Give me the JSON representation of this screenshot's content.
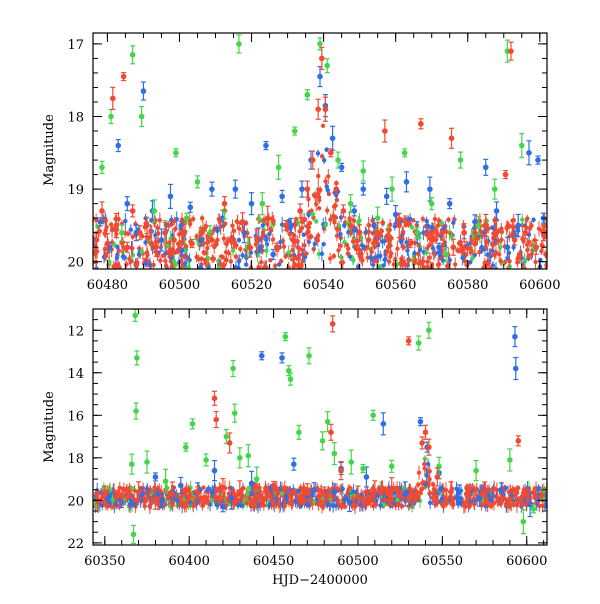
{
  "chart_data": [
    {
      "type": "scatter",
      "title": "",
      "xlabel": "",
      "ylabel": "Magnitude",
      "xlim": [
        60476,
        60602
      ],
      "ylim": [
        20.1,
        16.85
      ],
      "y_inverted": true,
      "x_ticks": [
        60480,
        60500,
        60520,
        60540,
        60560,
        60580,
        60600
      ],
      "x_tick_labels": [
        "60480",
        "60500",
        "60520",
        "60540",
        "60560",
        "60580",
        "60600"
      ],
      "y_ticks": [
        17,
        18,
        19,
        20
      ],
      "y_tick_labels": [
        "17",
        "18",
        "19",
        "20"
      ],
      "x_minor_step": 5,
      "y_minor_step": 0.2,
      "grid": false,
      "legend": "none",
      "series": [
        {
          "color": "#2e6fe6",
          "points": [
            [
              60478.0,
              19.45
            ],
            [
              60480.5,
              19.8
            ],
            [
              60483.0,
              18.4
            ],
            [
              60485.5,
              19.2
            ],
            [
              60488.0,
              19.6
            ],
            [
              60490.0,
              17.65
            ],
            [
              60492.5,
              19.3
            ],
            [
              60495.0,
              19.7
            ],
            [
              60497.5,
              19.1
            ],
            [
              60500.5,
              19.5
            ],
            [
              60503.0,
              19.25
            ],
            [
              60506.0,
              19.7
            ],
            [
              60509.0,
              19.0
            ],
            [
              60512.0,
              19.4
            ],
            [
              60515.5,
              19.0
            ],
            [
              60518.0,
              19.6
            ],
            [
              60520.0,
              19.2
            ],
            [
              60522.0,
              19.7
            ],
            [
              60524.0,
              18.4
            ],
            [
              60526.0,
              19.9
            ],
            [
              60528.5,
              19.1
            ],
            [
              60531.0,
              19.5
            ],
            [
              60534.0,
              19.0
            ],
            [
              60536.5,
              18.6
            ],
            [
              60539.0,
              17.45
            ],
            [
              60540.5,
              17.85
            ],
            [
              60542.5,
              18.3
            ],
            [
              60545.0,
              18.7
            ],
            [
              60548.5,
              19.3
            ],
            [
              60551.0,
              19.0
            ],
            [
              60554.0,
              19.5
            ],
            [
              60557.5,
              19.1
            ],
            [
              60560.0,
              19.35
            ],
            [
              60563.0,
              18.9
            ],
            [
              60566.0,
              19.6
            ],
            [
              60569.5,
              19.0
            ],
            [
              60572.0,
              19.8
            ],
            [
              60575.0,
              19.2
            ],
            [
              60579.0,
              19.6
            ],
            [
              60582.0,
              19.45
            ],
            [
              60585.0,
              18.7
            ],
            [
              60588.0,
              19.3
            ],
            [
              60591.0,
              19.8
            ],
            [
              60594.0,
              19.5
            ],
            [
              60597.0,
              18.5
            ],
            [
              60599.5,
              18.6
            ],
            [
              60601.0,
              19.4
            ]
          ]
        },
        {
          "color": "#43d64a",
          "points": [
            [
              60478.5,
              18.7
            ],
            [
              60481.0,
              18.0
            ],
            [
              60484.0,
              19.6
            ],
            [
              60487.0,
              17.15
            ],
            [
              60489.5,
              18.0
            ],
            [
              60493.0,
              19.3
            ],
            [
              60496.0,
              19.6
            ],
            [
              60499.0,
              18.5
            ],
            [
              60502.0,
              19.4
            ],
            [
              60505.0,
              18.9
            ],
            [
              60508.5,
              19.6
            ],
            [
              60512.5,
              19.3
            ],
            [
              60516.5,
              17.0
            ],
            [
              60519.0,
              19.8
            ],
            [
              60523.0,
              19.2
            ],
            [
              60527.5,
              18.7
            ],
            [
              60532.0,
              18.2
            ],
            [
              60535.5,
              17.7
            ],
            [
              60539.0,
              17.0
            ],
            [
              60541.0,
              17.3
            ],
            [
              60544.0,
              18.6
            ],
            [
              60547.5,
              19.2
            ],
            [
              60551.0,
              18.75
            ],
            [
              60555.0,
              19.4
            ],
            [
              60559.0,
              19.0
            ],
            [
              60562.5,
              18.5
            ],
            [
              60566.0,
              19.6
            ],
            [
              60570.0,
              19.2
            ],
            [
              60574.0,
              19.9
            ],
            [
              60578.0,
              18.6
            ],
            [
              60583.0,
              19.5
            ],
            [
              60587.5,
              19.0
            ],
            [
              60591.0,
              17.1
            ],
            [
              60595.0,
              18.4
            ],
            [
              60598.5,
              19.8
            ]
          ]
        },
        {
          "color": "#f14a32",
          "points": [
            [
              60477.0,
              19.7
            ],
            [
              60478.5,
              19.3
            ],
            [
              60480.0,
              19.75
            ],
            [
              60481.5,
              17.75
            ],
            [
              60482.5,
              19.5
            ],
            [
              60484.5,
              17.45
            ],
            [
              60485.5,
              19.8
            ],
            [
              60487.0,
              19.3
            ],
            [
              60489.0,
              19.6
            ],
            [
              60491.0,
              19.5
            ],
            [
              60493.5,
              19.8
            ],
            [
              60496.0,
              19.6
            ],
            [
              60498.5,
              19.7
            ],
            [
              60501.0,
              19.6
            ],
            [
              60503.5,
              19.75
            ],
            [
              60506.0,
              19.6
            ],
            [
              60509.0,
              19.7
            ],
            [
              60512.5,
              19.2
            ],
            [
              60515.0,
              19.7
            ],
            [
              60517.5,
              19.45
            ],
            [
              60519.5,
              19.8
            ],
            [
              60521.5,
              19.7
            ],
            [
              60524.5,
              19.4
            ],
            [
              60527.0,
              19.8
            ],
            [
              60529.5,
              19.5
            ],
            [
              60531.5,
              19.7
            ],
            [
              60533.5,
              19.3
            ],
            [
              60535.5,
              19.0
            ],
            [
              60537.0,
              18.6
            ],
            [
              60538.5,
              17.9
            ],
            [
              60539.5,
              17.2
            ],
            [
              60540.5,
              17.9
            ],
            [
              60542.0,
              18.5
            ],
            [
              60543.5,
              19.0
            ],
            [
              60545.5,
              19.3
            ],
            [
              60547.5,
              19.5
            ],
            [
              60550.0,
              19.6
            ],
            [
              60552.5,
              19.7
            ],
            [
              60555.0,
              19.6
            ],
            [
              60558.0,
              19.7
            ],
            [
              60561.0,
              19.5
            ],
            [
              60564.0,
              19.75
            ],
            [
              60567.0,
              18.1
            ],
            [
              60570.0,
              19.7
            ],
            [
              60573.0,
              19.6
            ],
            [
              60576.0,
              19.8
            ],
            [
              60579.0,
              19.6
            ],
            [
              60582.0,
              19.75
            ],
            [
              60585.0,
              19.5
            ],
            [
              60588.0,
              19.6
            ],
            [
              60590.5,
              18.8
            ],
            [
              60593.0,
              19.7
            ],
            [
              60596.0,
              19.6
            ],
            [
              60599.0,
              19.8
            ],
            [
              60601.0,
              19.6
            ],
            [
              60592.0,
              17.1
            ],
            [
              60575.5,
              18.3
            ],
            [
              60557.0,
              18.2
            ]
          ]
        }
      ]
    },
    {
      "type": "scatter",
      "title": "",
      "xlabel": "HJD−2400000",
      "ylabel": "Magnitude",
      "xlim": [
        60343,
        60612
      ],
      "ylim": [
        22.1,
        11.0
      ],
      "y_inverted": true,
      "x_ticks": [
        60350,
        60400,
        60450,
        60500,
        60550,
        60600
      ],
      "x_tick_labels": [
        "60350",
        "60400",
        "60450",
        "60500",
        "60550",
        "60600"
      ],
      "y_ticks": [
        12,
        14,
        16,
        18,
        20,
        22
      ],
      "y_tick_labels": [
        "12",
        "14",
        "16",
        "18",
        "20",
        "22"
      ],
      "x_minor_step": 10,
      "y_minor_step": 0.5,
      "grid": false,
      "legend": "none",
      "series": [
        {
          "color": "#2e6fe6",
          "points": [
            [
              60352,
              19.9
            ],
            [
              60360,
              20.1
            ],
            [
              60372,
              19.7
            ],
            [
              60384,
              20.0
            ],
            [
              60395,
              19.3
            ],
            [
              60405,
              19.6
            ],
            [
              60415,
              18.6
            ],
            [
              60425,
              19.9
            ],
            [
              60437,
              19.2
            ],
            [
              60443,
              13.2
            ],
            [
              60455,
              13.3
            ],
            [
              60462,
              18.3
            ],
            [
              60474,
              19.5
            ],
            [
              60486,
              19.6
            ],
            [
              60495,
              20.1
            ],
            [
              60505,
              18.9
            ],
            [
              60515,
              16.4
            ],
            [
              60528,
              19.7
            ],
            [
              60537,
              16.3
            ],
            [
              60541,
              17.5
            ],
            [
              60548,
              18.7
            ],
            [
              60560,
              19.6
            ],
            [
              60572,
              19.9
            ],
            [
              60585,
              19.6
            ],
            [
              60593,
              12.3
            ],
            [
              60593.5,
              13.8
            ],
            [
              60602,
              20.2
            ],
            [
              60380,
              18.9
            ],
            [
              60420,
              20.3
            ],
            [
              60490,
              18.5
            ]
          ]
        },
        {
          "color": "#43d64a",
          "points": [
            [
              60368,
              11.3
            ],
            [
              60369,
              13.3
            ],
            [
              60368.5,
              15.8
            ],
            [
              60367,
              21.6
            ],
            [
              60366,
              18.3
            ],
            [
              60375,
              18.2
            ],
            [
              60386,
              19.1
            ],
            [
              60398,
              17.5
            ],
            [
              60402,
              16.4
            ],
            [
              60410,
              18.1
            ],
            [
              60422,
              17.0
            ],
            [
              60426,
              13.8
            ],
            [
              60427,
              15.9
            ],
            [
              60430,
              18.0
            ],
            [
              60435,
              17.9
            ],
            [
              60440,
              19.0
            ],
            [
              60457,
              12.3
            ],
            [
              60459,
              13.9
            ],
            [
              60460,
              14.3
            ],
            [
              60465,
              16.8
            ],
            [
              60471,
              13.2
            ],
            [
              60479,
              17.2
            ],
            [
              60482,
              16.3
            ],
            [
              60486,
              17.8
            ],
            [
              60496,
              18.2
            ],
            [
              60503,
              18.5
            ],
            [
              60509,
              16.0
            ],
            [
              60520,
              18.4
            ],
            [
              60536,
              12.6
            ],
            [
              60542,
              12.0
            ],
            [
              60548,
              18.4
            ],
            [
              60570,
              18.6
            ],
            [
              60590,
              18.1
            ],
            [
              60598,
              21.0
            ],
            [
              60604,
              20.4
            ]
          ]
        },
        {
          "color": "#f14a32",
          "points": [
            [
              60350,
              19.7
            ],
            [
              60360,
              19.8
            ],
            [
              60370,
              19.6
            ],
            [
              60380,
              19.9
            ],
            [
              60390,
              19.7
            ],
            [
              60400,
              19.8
            ],
            [
              60405,
              19.6
            ],
            [
              60410,
              19.9
            ],
            [
              60415,
              15.2
            ],
            [
              60416,
              16.2
            ],
            [
              60420,
              19.4
            ],
            [
              60424,
              17.3
            ],
            [
              60430,
              19.6
            ],
            [
              60440,
              19.8
            ],
            [
              60450,
              19.3
            ],
            [
              60460,
              19.8
            ],
            [
              60470,
              19.5
            ],
            [
              60480,
              19.7
            ],
            [
              60485,
              11.7
            ],
            [
              60490,
              18.6
            ],
            [
              60500,
              19.8
            ],
            [
              60510,
              19.6
            ],
            [
              60520,
              19.5
            ],
            [
              60530,
              12.5
            ],
            [
              60532,
              19.7
            ],
            [
              60538,
              17.3
            ],
            [
              60540,
              16.8
            ],
            [
              60542,
              17.5
            ],
            [
              60547,
              18.9
            ],
            [
              60555,
              19.6
            ],
            [
              60565,
              19.8
            ],
            [
              60575,
              19.7
            ],
            [
              60585,
              19.9
            ],
            [
              60595,
              17.2
            ],
            [
              60600,
              19.7
            ],
            [
              60605,
              19.8
            ],
            [
              60484,
              16.8
            ]
          ]
        }
      ]
    }
  ]
}
